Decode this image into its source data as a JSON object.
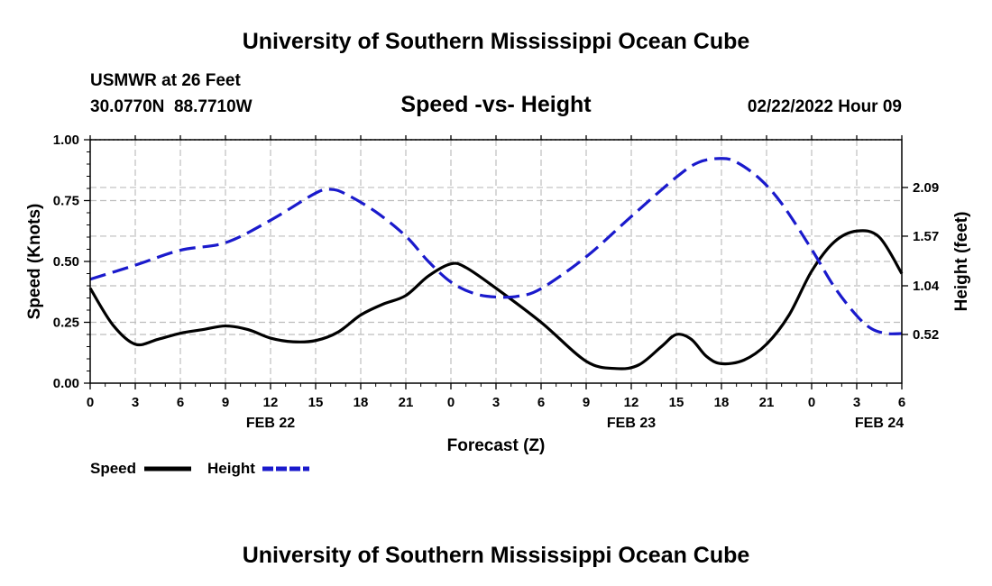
{
  "header": {
    "title": "University of Southern Mississippi Ocean Cube",
    "station": "USMWR at 26 Feet",
    "coords": "30.0770N  88.7710W",
    "subtitle": "Speed -vs- Height",
    "datetime": "02/22/2022 Hour 09"
  },
  "footer": {
    "title": "University of Southern Mississippi Ocean Cube"
  },
  "chart_data": {
    "type": "line",
    "title": "Speed -vs- Height",
    "xlabel": "Forecast (Z)",
    "ylabel_left": "Speed (Knots)",
    "ylabel_right": "Height (feet)",
    "x_unit": "hours from Feb 22 00Z",
    "xlim": [
      0,
      54
    ],
    "ylim_left": [
      0,
      1.0
    ],
    "ylim_right": [
      0,
      2.6
    ],
    "grid": true,
    "x_ticks": [
      {
        "x": 0,
        "label": "0"
      },
      {
        "x": 3,
        "label": "3"
      },
      {
        "x": 6,
        "label": "6"
      },
      {
        "x": 9,
        "label": "9"
      },
      {
        "x": 12,
        "label": "12"
      },
      {
        "x": 15,
        "label": "15"
      },
      {
        "x": 18,
        "label": "18"
      },
      {
        "x": 21,
        "label": "21"
      },
      {
        "x": 24,
        "label": "0"
      },
      {
        "x": 27,
        "label": "3"
      },
      {
        "x": 30,
        "label": "6"
      },
      {
        "x": 33,
        "label": "9"
      },
      {
        "x": 36,
        "label": "12"
      },
      {
        "x": 39,
        "label": "15"
      },
      {
        "x": 42,
        "label": "18"
      },
      {
        "x": 45,
        "label": "21"
      },
      {
        "x": 48,
        "label": "0"
      },
      {
        "x": 51,
        "label": "3"
      },
      {
        "x": 54,
        "label": "6"
      }
    ],
    "date_labels": [
      {
        "x": 12,
        "label": "FEB 22"
      },
      {
        "x": 36,
        "label": "FEB 23"
      },
      {
        "x": 52.5,
        "label": "FEB 24"
      }
    ],
    "y_left_ticks": [
      {
        "v": 0.0,
        "label": "0.00"
      },
      {
        "v": 0.25,
        "label": "0.25"
      },
      {
        "v": 0.5,
        "label": "0.50"
      },
      {
        "v": 0.75,
        "label": "0.75"
      },
      {
        "v": 1.0,
        "label": "1.00"
      }
    ],
    "y_right_ticks": [
      {
        "v": 0.52,
        "label": "0.52"
      },
      {
        "v": 1.04,
        "label": "1.04"
      },
      {
        "v": 1.57,
        "label": "1.57"
      },
      {
        "v": 2.09,
        "label": "2.09"
      }
    ],
    "series": [
      {
        "name": "Speed",
        "axis": "left",
        "color": "#000000",
        "dash": "none",
        "points": [
          [
            0,
            0.39
          ],
          [
            1.5,
            0.24
          ],
          [
            3,
            0.16
          ],
          [
            4.5,
            0.18
          ],
          [
            6,
            0.205
          ],
          [
            7.5,
            0.22
          ],
          [
            9,
            0.235
          ],
          [
            10.5,
            0.22
          ],
          [
            12,
            0.185
          ],
          [
            13.5,
            0.17
          ],
          [
            15,
            0.175
          ],
          [
            16.5,
            0.21
          ],
          [
            18,
            0.28
          ],
          [
            19.5,
            0.325
          ],
          [
            21,
            0.36
          ],
          [
            22.5,
            0.44
          ],
          [
            24,
            0.49
          ],
          [
            25,
            0.475
          ],
          [
            27,
            0.39
          ],
          [
            30,
            0.25
          ],
          [
            33,
            0.09
          ],
          [
            35,
            0.06
          ],
          [
            36.5,
            0.075
          ],
          [
            38,
            0.15
          ],
          [
            39,
            0.2
          ],
          [
            40,
            0.18
          ],
          [
            41,
            0.11
          ],
          [
            42,
            0.08
          ],
          [
            43.5,
            0.095
          ],
          [
            45,
            0.16
          ],
          [
            46.5,
            0.28
          ],
          [
            48,
            0.46
          ],
          [
            49.5,
            0.58
          ],
          [
            51,
            0.625
          ],
          [
            52.5,
            0.6
          ],
          [
            54,
            0.45
          ]
        ]
      },
      {
        "name": "Height",
        "axis": "right",
        "color": "#1a1acc",
        "dash": "18 8",
        "points": [
          [
            0,
            1.11
          ],
          [
            3,
            1.26
          ],
          [
            6,
            1.42
          ],
          [
            9,
            1.5
          ],
          [
            12,
            1.74
          ],
          [
            15,
            2.03
          ],
          [
            16,
            2.07
          ],
          [
            17,
            2.02
          ],
          [
            19,
            1.83
          ],
          [
            21,
            1.57
          ],
          [
            22.5,
            1.3
          ],
          [
            24,
            1.08
          ],
          [
            25.5,
            0.96
          ],
          [
            27,
            0.92
          ],
          [
            28.5,
            0.93
          ],
          [
            30,
            1.01
          ],
          [
            33,
            1.35
          ],
          [
            36,
            1.78
          ],
          [
            39,
            2.2
          ],
          [
            40.5,
            2.36
          ],
          [
            42,
            2.4
          ],
          [
            43,
            2.36
          ],
          [
            44.5,
            2.19
          ],
          [
            46,
            1.92
          ],
          [
            48,
            1.43
          ],
          [
            49.5,
            1.03
          ],
          [
            51,
            0.72
          ],
          [
            52,
            0.58
          ],
          [
            53,
            0.53
          ],
          [
            54,
            0.53
          ]
        ]
      }
    ]
  },
  "legend": {
    "speed_label": "Speed",
    "height_label": "Height",
    "speed_color": "#000000",
    "height_color": "#1a1acc"
  }
}
